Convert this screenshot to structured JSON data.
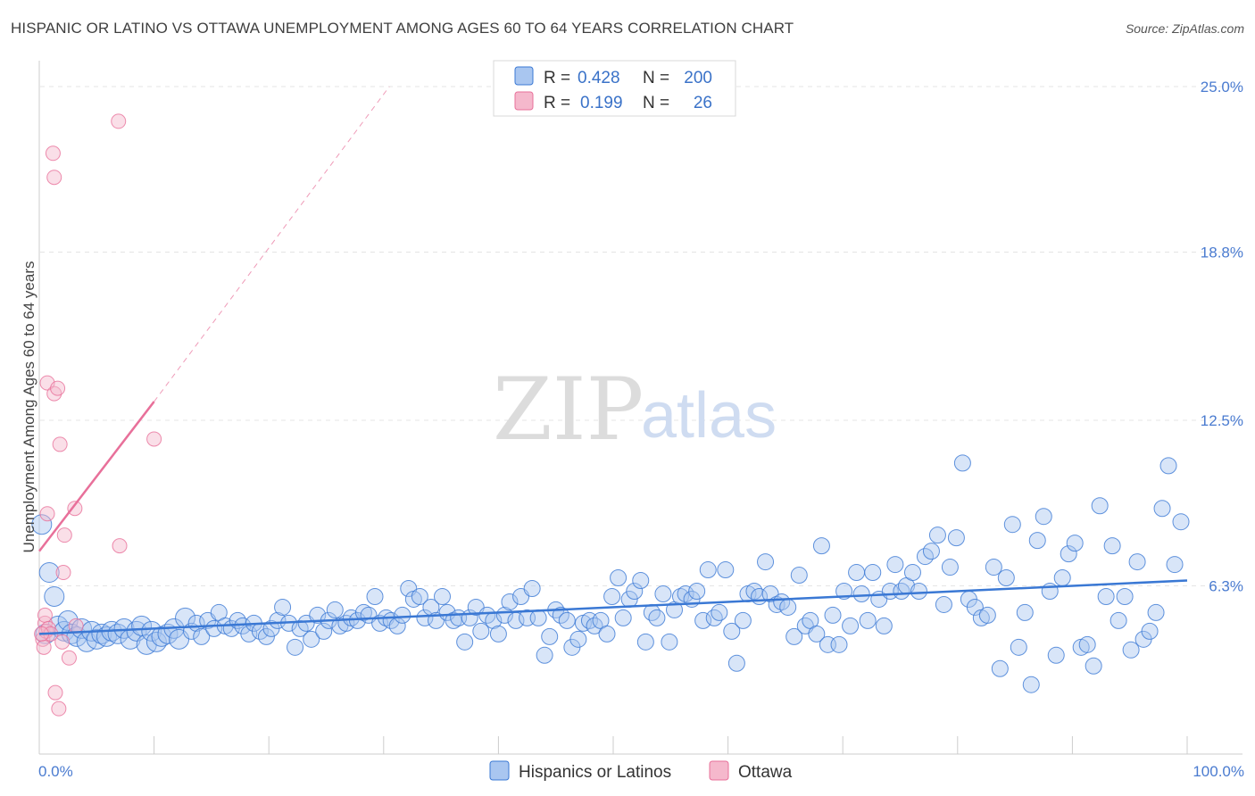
{
  "title": "HISPANIC OR LATINO VS OTTAWA UNEMPLOYMENT AMONG AGES 60 TO 64 YEARS CORRELATION CHART",
  "source": "Source: ZipAtlas.com",
  "watermark": {
    "zip": "ZIP",
    "atlas": "atlas"
  },
  "colors": {
    "blue": "#3a78d4",
    "blue_fill": "#a9c6f0",
    "pink": "#e8709a",
    "pink_fill": "#f5b8cc"
  },
  "chart_data": {
    "type": "scatter",
    "title": "HISPANIC OR LATINO VS OTTAWA UNEMPLOYMENT AMONG AGES 60 TO 64 YEARS CORRELATION CHART",
    "xlabel": "",
    "ylabel": "Unemployment Among Ages 60 to 64 years",
    "xlim": [
      0,
      100
    ],
    "ylim": [
      0,
      25.0
    ],
    "x_tick_labels": {
      "left": "0.0%",
      "right": "100.0%"
    },
    "y_ticks": [
      {
        "value": 6.3,
        "label": "6.3%"
      },
      {
        "value": 12.5,
        "label": "12.5%"
      },
      {
        "value": 18.8,
        "label": "18.8%"
      },
      {
        "value": 25.0,
        "label": "25.0%"
      }
    ],
    "grid": true,
    "legend": {
      "placement": "top-center",
      "rows": [
        {
          "r_label": "R =",
          "r": "0.428",
          "n_label": "N =",
          "n": "200"
        },
        {
          "r_label": "R =",
          "r": "0.199",
          "n_label": "N =",
          "n": "26"
        }
      ]
    },
    "series": [
      {
        "name": "Hispanics or Latinos",
        "trend": {
          "x": [
            0,
            100
          ],
          "y": [
            4.5,
            6.5
          ]
        },
        "points": [
          [
            0.2,
            8.6
          ],
          [
            0.5,
            4.5
          ],
          [
            0.8,
            6.8
          ],
          [
            1.2,
            5.9
          ],
          [
            1.5,
            4.8
          ],
          [
            2.0,
            4.6
          ],
          [
            2.3,
            5.0
          ],
          [
            2.6,
            4.5
          ],
          [
            3.0,
            4.4
          ],
          [
            3.4,
            4.7
          ],
          [
            3.8,
            4.2
          ],
          [
            4.2,
            4.6
          ],
          [
            4.6,
            4.3
          ],
          [
            5.0,
            4.5
          ],
          [
            5.4,
            4.4
          ],
          [
            5.8,
            4.6
          ],
          [
            6.3,
            4.5
          ],
          [
            6.8,
            4.7
          ],
          [
            7.3,
            4.3
          ],
          [
            7.8,
            4.6
          ],
          [
            8.2,
            4.8
          ],
          [
            8.6,
            4.1
          ],
          [
            9.0,
            4.6
          ],
          [
            9.4,
            4.2
          ],
          [
            9.8,
            4.4
          ],
          [
            10.3,
            4.5
          ],
          [
            10.8,
            4.7
          ],
          [
            11.2,
            4.3
          ],
          [
            11.7,
            5.1
          ],
          [
            12.2,
            4.6
          ],
          [
            12.6,
            4.9
          ],
          [
            13.0,
            4.4
          ],
          [
            13.5,
            5.0
          ],
          [
            14.0,
            4.7
          ],
          [
            14.4,
            5.3
          ],
          [
            14.9,
            4.8
          ],
          [
            15.4,
            4.7
          ],
          [
            15.9,
            5.0
          ],
          [
            16.3,
            4.8
          ],
          [
            16.8,
            4.5
          ],
          [
            17.2,
            4.9
          ],
          [
            17.7,
            4.6
          ],
          [
            18.2,
            4.4
          ],
          [
            18.6,
            4.7
          ],
          [
            19.1,
            5.0
          ],
          [
            19.5,
            5.5
          ],
          [
            20.0,
            4.9
          ],
          [
            20.5,
            4.0
          ],
          [
            20.9,
            4.7
          ],
          [
            21.4,
            4.9
          ],
          [
            21.8,
            4.3
          ],
          [
            22.3,
            5.2
          ],
          [
            22.8,
            4.6
          ],
          [
            23.2,
            5.0
          ],
          [
            23.7,
            5.4
          ],
          [
            24.1,
            4.8
          ],
          [
            24.6,
            4.9
          ],
          [
            25.0,
            5.1
          ],
          [
            25.5,
            5.0
          ],
          [
            26.0,
            5.3
          ],
          [
            26.4,
            5.2
          ],
          [
            26.9,
            5.9
          ],
          [
            27.3,
            4.9
          ],
          [
            27.8,
            5.1
          ],
          [
            28.2,
            5.0
          ],
          [
            28.7,
            4.8
          ],
          [
            29.1,
            5.2
          ],
          [
            29.6,
            6.2
          ],
          [
            30.0,
            5.8
          ],
          [
            30.5,
            5.9
          ],
          [
            30.9,
            5.1
          ],
          [
            31.4,
            5.5
          ],
          [
            31.8,
            5.0
          ],
          [
            32.3,
            5.9
          ],
          [
            32.7,
            5.3
          ],
          [
            33.2,
            5.0
          ],
          [
            33.6,
            5.1
          ],
          [
            34.1,
            4.2
          ],
          [
            34.5,
            5.1
          ],
          [
            35.0,
            5.5
          ],
          [
            35.4,
            4.6
          ],
          [
            35.9,
            5.2
          ],
          [
            36.4,
            5.0
          ],
          [
            36.8,
            4.5
          ],
          [
            37.3,
            5.2
          ],
          [
            37.7,
            5.7
          ],
          [
            38.2,
            5.0
          ],
          [
            38.6,
            5.9
          ],
          [
            39.1,
            5.1
          ],
          [
            39.5,
            6.2
          ],
          [
            40.0,
            5.1
          ],
          [
            40.5,
            3.7
          ],
          [
            40.9,
            4.4
          ],
          [
            41.4,
            5.4
          ],
          [
            41.8,
            5.2
          ],
          [
            42.3,
            5.0
          ],
          [
            42.7,
            4.0
          ],
          [
            43.2,
            4.3
          ],
          [
            43.6,
            4.9
          ],
          [
            44.1,
            5.0
          ],
          [
            44.5,
            4.8
          ],
          [
            45.0,
            5.0
          ],
          [
            45.5,
            4.5
          ],
          [
            45.9,
            5.9
          ],
          [
            46.4,
            6.6
          ],
          [
            46.8,
            5.1
          ],
          [
            47.3,
            5.8
          ],
          [
            47.7,
            6.1
          ],
          [
            48.2,
            6.5
          ],
          [
            48.6,
            4.2
          ],
          [
            49.1,
            5.3
          ],
          [
            49.5,
            5.1
          ],
          [
            50.0,
            6.0
          ],
          [
            50.5,
            4.2
          ],
          [
            50.9,
            5.4
          ],
          [
            51.4,
            5.9
          ],
          [
            51.8,
            6.0
          ],
          [
            52.3,
            5.8
          ],
          [
            52.7,
            6.1
          ],
          [
            53.2,
            5.0
          ],
          [
            53.6,
            6.9
          ],
          [
            54.1,
            5.1
          ],
          [
            54.5,
            5.3
          ],
          [
            55.0,
            6.9
          ],
          [
            55.5,
            4.6
          ],
          [
            55.9,
            3.4
          ],
          [
            56.4,
            5.0
          ],
          [
            56.8,
            6.0
          ],
          [
            57.3,
            6.1
          ],
          [
            57.7,
            5.9
          ],
          [
            58.2,
            7.2
          ],
          [
            58.6,
            6.0
          ],
          [
            59.1,
            5.6
          ],
          [
            59.5,
            5.7
          ],
          [
            60.0,
            5.5
          ],
          [
            60.5,
            4.4
          ],
          [
            60.9,
            6.7
          ],
          [
            61.4,
            4.8
          ],
          [
            61.8,
            5.0
          ],
          [
            62.3,
            4.5
          ],
          [
            62.7,
            7.8
          ],
          [
            63.2,
            4.1
          ],
          [
            63.6,
            5.2
          ],
          [
            64.1,
            4.1
          ],
          [
            64.5,
            6.1
          ],
          [
            65.0,
            4.8
          ],
          [
            65.5,
            6.8
          ],
          [
            65.9,
            6.0
          ],
          [
            66.4,
            5.0
          ],
          [
            66.8,
            6.8
          ],
          [
            67.3,
            5.8
          ],
          [
            67.7,
            4.8
          ],
          [
            68.2,
            6.1
          ],
          [
            68.6,
            7.1
          ],
          [
            69.1,
            6.1
          ],
          [
            69.5,
            6.3
          ],
          [
            70.0,
            6.8
          ],
          [
            70.5,
            6.1
          ],
          [
            71.0,
            7.4
          ],
          [
            71.5,
            7.6
          ],
          [
            72.0,
            8.2
          ],
          [
            72.5,
            5.6
          ],
          [
            73.0,
            7.0
          ],
          [
            73.5,
            8.1
          ],
          [
            74.0,
            10.9
          ],
          [
            74.5,
            5.8
          ],
          [
            75.0,
            5.5
          ],
          [
            75.5,
            5.1
          ],
          [
            76.0,
            5.2
          ],
          [
            76.5,
            7.0
          ],
          [
            77.0,
            3.2
          ],
          [
            77.5,
            6.6
          ],
          [
            78.0,
            8.6
          ],
          [
            78.5,
            4.0
          ],
          [
            79.0,
            5.3
          ],
          [
            79.5,
            2.6
          ],
          [
            80.0,
            8.0
          ],
          [
            80.5,
            8.9
          ],
          [
            81.0,
            6.1
          ],
          [
            81.5,
            3.7
          ],
          [
            82.0,
            6.6
          ],
          [
            82.5,
            7.5
          ],
          [
            83.0,
            7.9
          ],
          [
            83.5,
            4.0
          ],
          [
            84.0,
            4.1
          ],
          [
            84.5,
            3.3
          ],
          [
            85.0,
            9.3
          ],
          [
            85.5,
            5.9
          ],
          [
            86.0,
            7.8
          ],
          [
            86.5,
            5.0
          ],
          [
            87.0,
            5.9
          ],
          [
            87.5,
            3.9
          ],
          [
            88.0,
            7.2
          ],
          [
            88.5,
            4.3
          ],
          [
            89.0,
            4.6
          ],
          [
            89.5,
            5.3
          ],
          [
            90.0,
            9.2
          ],
          [
            90.5,
            10.8
          ],
          [
            91.0,
            7.1
          ],
          [
            91.5,
            8.7
          ]
        ]
      },
      {
        "name": "Ottawa",
        "trend": {
          "x": [
            0,
            10
          ],
          "y": [
            7.6,
            13.2
          ]
        },
        "trend_extension": {
          "x": [
            10,
            30.5
          ],
          "y": [
            13.2,
            25.0
          ]
        },
        "points": [
          [
            0.3,
            4.3
          ],
          [
            0.4,
            4.0
          ],
          [
            0.5,
            4.9
          ],
          [
            0.5,
            5.2
          ],
          [
            0.6,
            4.6
          ],
          [
            0.7,
            9.0
          ],
          [
            0.7,
            13.9
          ],
          [
            0.8,
            4.7
          ],
          [
            1.0,
            4.5
          ],
          [
            1.2,
            22.5
          ],
          [
            1.3,
            21.6
          ],
          [
            1.3,
            13.5
          ],
          [
            1.4,
            2.3
          ],
          [
            1.6,
            13.7
          ],
          [
            1.7,
            1.7
          ],
          [
            1.8,
            11.6
          ],
          [
            2.0,
            4.2
          ],
          [
            2.1,
            6.8
          ],
          [
            2.2,
            8.2
          ],
          [
            2.6,
            3.6
          ],
          [
            3.1,
            9.2
          ],
          [
            3.2,
            4.8
          ],
          [
            6.9,
            23.7
          ],
          [
            7.0,
            7.8
          ],
          [
            10.0,
            11.8
          ],
          [
            0.2,
            4.5
          ]
        ]
      }
    ]
  }
}
